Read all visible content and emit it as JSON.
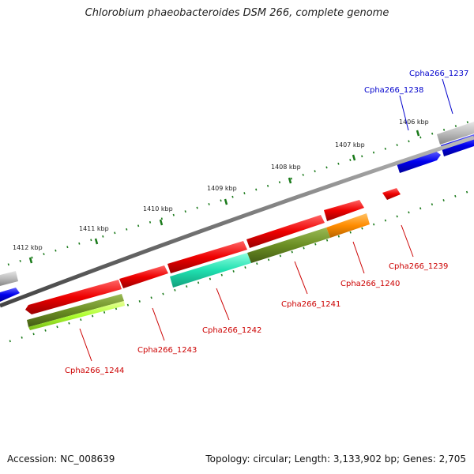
{
  "title": "Chlorobium phaeobacteroides DSM 266, complete genome",
  "footer": {
    "accession": "Accession: NC_008639",
    "summary": "Topology: circular; Length: 3,133,902 bp; Genes: 2,705"
  },
  "scale_labels": [
    "1406 kbp",
    "1407 kbp",
    "1408 kbp",
    "1409 kbp",
    "1410 kbp",
    "1411 kbp",
    "1412 kbp"
  ],
  "genes": [
    {
      "label": "Cpha266_1237",
      "color": "#0000cc"
    },
    {
      "label": "Cpha266_1238",
      "color": "#0000cc"
    },
    {
      "label": "Cpha266_1239",
      "color": "#cc0000"
    },
    {
      "label": "Cpha266_1240",
      "color": "#cc0000"
    },
    {
      "label": "Cpha266_1241",
      "color": "#cc0000"
    },
    {
      "label": "Cpha266_1242",
      "color": "#cc0000"
    },
    {
      "label": "Cpha266_1243",
      "color": "#cc0000"
    },
    {
      "label": "Cpha266_1244",
      "color": "#cc0000"
    }
  ],
  "colors": {
    "forward_strand": "#ee0000",
    "reverse_strand": "#0000ee",
    "backbone": "#777777",
    "tick": "#1a7a1a",
    "gray_gene": "#bbbbbb",
    "olive": "#6b8e23",
    "teal": "#20e0b0",
    "orange": "#ff8c00",
    "lime": "#adff2f"
  }
}
